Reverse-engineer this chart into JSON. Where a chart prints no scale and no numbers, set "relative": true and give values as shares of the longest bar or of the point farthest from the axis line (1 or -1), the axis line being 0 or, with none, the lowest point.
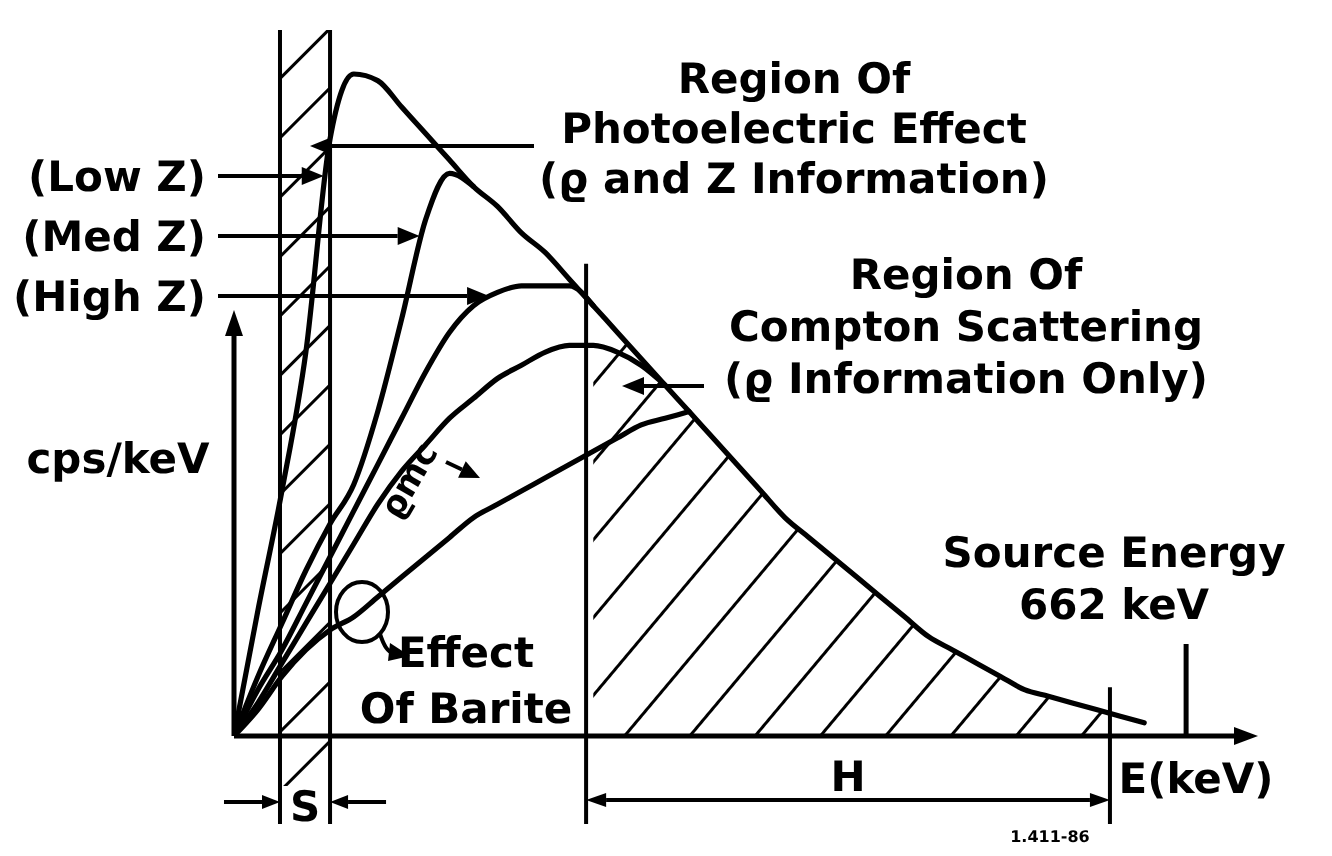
{
  "chart_data": {
    "type": "line",
    "relative": true,
    "xlabel": "E(keV)",
    "ylabel": "cps/keV",
    "legend": "left",
    "categories": [
      null,
      null,
      null,
      null,
      null,
      null,
      null,
      null,
      null,
      null,
      null,
      null,
      null,
      null,
      null,
      null,
      null,
      null,
      null,
      null,
      null,
      null,
      null,
      null,
      null,
      null,
      null,
      null,
      null,
      null,
      null,
      null,
      null,
      null,
      null,
      null,
      null,
      null,
      null,
      null,
      null,
      null,
      null
    ],
    "series": [
      {
        "name": "(Low Z)",
        "color": "#000000",
        "values": [
          0,
          0.19,
          0.37,
          0.58,
          0.9,
          1,
          0.99,
          0.95,
          0.91,
          0.87,
          0.83,
          0.8,
          0.76,
          0.73,
          0.69,
          0.65,
          0.61,
          0.57,
          0.53,
          0.49,
          0.45,
          0.41,
          0.37,
          0.33,
          0.3,
          0.27,
          0.24,
          0.21,
          0.18,
          0.15,
          0.13,
          0.11,
          0.09,
          0.07,
          0.06,
          0.05,
          0.04,
          0.03,
          0.02,
          null,
          null,
          null,
          null
        ]
      },
      {
        "name": "(Med Z)",
        "color": "#000000",
        "values": [
          0,
          0.09,
          0.17,
          0.25,
          0.32,
          0.38,
          0.49,
          0.63,
          0.78,
          0.85,
          0.83,
          null,
          null,
          null,
          null,
          null,
          null,
          null,
          null,
          null,
          null,
          null,
          null,
          null,
          null,
          null,
          null,
          null,
          null,
          null,
          null,
          null,
          null,
          null,
          null,
          null,
          null,
          null,
          null,
          null,
          null,
          null,
          null
        ]
      },
      {
        "name": "(High Z)",
        "color": "#000000",
        "values": [
          0,
          0.07,
          0.13,
          0.2,
          0.27,
          0.34,
          0.41,
          0.48,
          0.55,
          0.61,
          0.65,
          0.67,
          0.68,
          0.68,
          0.68,
          0.65,
          null,
          null,
          null,
          null,
          null,
          null,
          null,
          null,
          null,
          null,
          null,
          null,
          null,
          null,
          null,
          null,
          null,
          null,
          null,
          null,
          null,
          null,
          null,
          null,
          null,
          null,
          null
        ]
      },
      {
        "color": "#000000",
        "values": [
          0,
          0.05,
          0.11,
          0.17,
          0.23,
          0.29,
          0.35,
          0.4,
          0.44,
          0.48,
          0.51,
          0.54,
          0.56,
          0.58,
          0.59,
          0.59,
          0.58,
          0.56,
          0.53,
          null,
          null,
          null,
          null,
          null,
          null,
          null,
          null,
          null,
          null,
          null,
          null,
          null,
          null,
          null,
          null,
          null,
          null,
          null,
          null,
          null,
          null,
          null,
          null
        ]
      },
      {
        "color": "#000000",
        "values": [
          0,
          0.04,
          0.09,
          0.13,
          0.16,
          0.18,
          0.21,
          0.24,
          0.27,
          0.3,
          0.33,
          0.35,
          0.37,
          0.39,
          0.41,
          0.43,
          0.45,
          0.47,
          0.48,
          0.49,
          null,
          null,
          null,
          null,
          null,
          null,
          null,
          null,
          null,
          null,
          null,
          null,
          null,
          null,
          null,
          null,
          null,
          null,
          null,
          null,
          null,
          null,
          null
        ]
      },
      {
        "type": "area",
        "color": "#000000",
        "values": [
          null,
          null,
          null,
          null,
          null,
          null,
          null,
          null,
          null,
          null,
          null,
          null,
          null,
          null,
          null,
          0.65,
          0.61,
          0.57,
          0.53,
          0.49,
          0.45,
          0.41,
          0.37,
          0.33,
          0.3,
          0.27,
          0.24,
          0.21,
          0.18,
          0.15,
          0.13,
          0.11,
          0.09,
          0.07,
          0.06,
          0.05,
          0.04,
          0.03,
          null,
          null,
          null,
          null,
          null
        ]
      }
    ],
    "annotations": [
      "Region Of\nPhotoelectric Effect\n(ϱ and Z Information)",
      "Region Of\nCompton Scattering\n(ϱ Information Only)",
      "ϱmc",
      "Effect\nOf Barite",
      "Source Energy\n662 keV",
      "S",
      "H",
      "1.411-86"
    ]
  }
}
